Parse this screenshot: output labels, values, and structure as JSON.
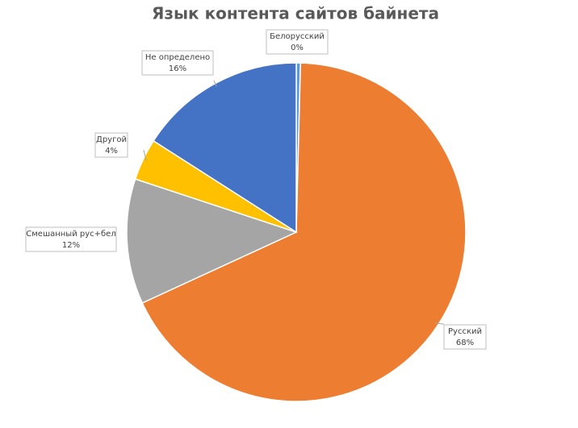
{
  "chart_data": {
    "type": "pie",
    "title": "Язык контента сайтов байнета",
    "categories": [
      "Белорусский",
      "Русский",
      "Смешанный рус+бел",
      "Другой",
      "Не определено"
    ],
    "values": [
      0.4,
      68,
      12,
      4,
      16
    ],
    "value_labels": [
      "0%",
      "68%",
      "12%",
      "4%",
      "16%"
    ],
    "colors": [
      "#5b9bd5",
      "#ed7d31",
      "#a5a5a5",
      "#ffc000",
      "#4472c4"
    ]
  }
}
